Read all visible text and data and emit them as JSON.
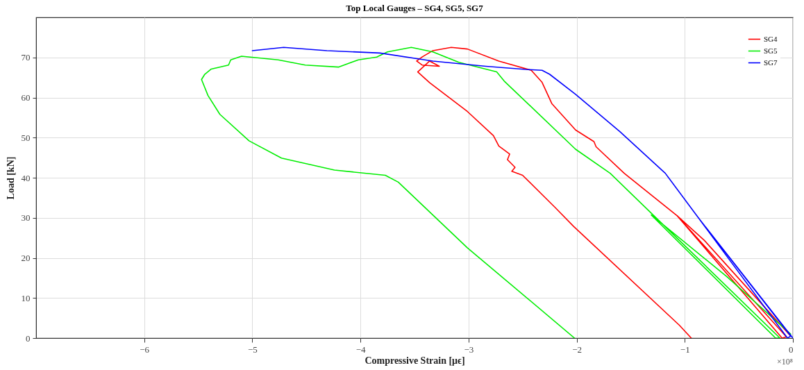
{
  "chart_data": {
    "type": "line",
    "title": "Top Local Gauges – SG4, SG5, SG7",
    "xlabel": "Compressive Strain [μϵ]",
    "ylabel": "Load [kN]",
    "annotations": [
      "×10⁸"
    ],
    "xlim": [
      -7,
      0
    ],
    "xticks": [
      -6,
      -5,
      -4,
      -3,
      -2,
      -1,
      0
    ],
    "ylim": [
      0,
      80
    ],
    "yticks": [
      0,
      10,
      20,
      30,
      40,
      50,
      60,
      70
    ],
    "grid": true,
    "legend": "top right",
    "line_style": "solid",
    "marker": "none",
    "series": [
      {
        "name": "SG4",
        "color": "#ff0000",
        "x": [
          -0.02,
          -0.82,
          -1.07,
          -0.1,
          -0.06,
          -1.07,
          -1.56,
          -1.82,
          -1.84,
          -2.01,
          -2.23,
          -2.32,
          -2.42,
          -2.72,
          -3.01,
          -3.16,
          -3.33,
          -3.43,
          -3.48,
          -3.43,
          -3.27,
          -3.36,
          -3.47,
          -3.36,
          -3.01,
          -2.77,
          -2.72,
          -2.62,
          -2.64,
          -2.57,
          -2.6,
          -2.5,
          -2.2,
          -2.03,
          -1.05,
          -0.94
        ],
        "values": [
          0.5,
          24.4,
          30.5,
          0,
          0.3,
          30.5,
          41.1,
          47.7,
          49,
          51.9,
          58.5,
          63.8,
          66.8,
          69.1,
          72.1,
          72.5,
          71.7,
          70.1,
          69.1,
          68.1,
          67.8,
          69.1,
          66.4,
          63.7,
          56.5,
          50.5,
          47.9,
          45.9,
          44.5,
          42.6,
          41.6,
          40.6,
          32.6,
          27.9,
          3.2,
          0
        ]
      },
      {
        "name": "SG5",
        "color": "#00ee00",
        "x": [
          -0.02,
          -0.61,
          -1.31,
          -0.16,
          -0.12,
          -1.22,
          -1.69,
          -2.01,
          -2.67,
          -2.74,
          -3.09,
          -3.33,
          -3.53,
          -3.75,
          -3.85,
          -4.02,
          -4.2,
          -4.51,
          -4.76,
          -5.1,
          -5.2,
          -5.22,
          -5.38,
          -5.44,
          -5.47,
          -5.41,
          -5.3,
          -5.03,
          -4.73,
          -4.24,
          -3.77,
          -3.65,
          -3.01,
          -2.02
        ],
        "values": [
          1,
          15.3,
          30.7,
          0,
          0,
          28.8,
          41.1,
          47.1,
          64.1,
          66.4,
          68.8,
          71.4,
          72.5,
          71.4,
          70.1,
          69.4,
          67.6,
          68.1,
          69.4,
          70.3,
          69.4,
          68.1,
          67.1,
          65.8,
          64.5,
          60.5,
          55.8,
          49.2,
          44.9,
          41.9,
          40.6,
          38.9,
          22.5,
          0
        ]
      },
      {
        "name": "SG7",
        "color": "#0000ff",
        "x": [
          0,
          -0.88,
          -0.05,
          -0.02,
          -0.88,
          -1.18,
          -1.6,
          -2.01,
          -2.25,
          -2.32,
          -2.47,
          -2.84,
          -3.33,
          -3.82,
          -4.31,
          -4.71,
          -5.0
        ],
        "values": [
          0,
          30.2,
          0,
          0.5,
          30.2,
          41.1,
          51.5,
          60.8,
          65.8,
          66.8,
          67,
          67.8,
          69.1,
          71.1,
          71.7,
          72.5,
          71.7
        ]
      }
    ]
  }
}
